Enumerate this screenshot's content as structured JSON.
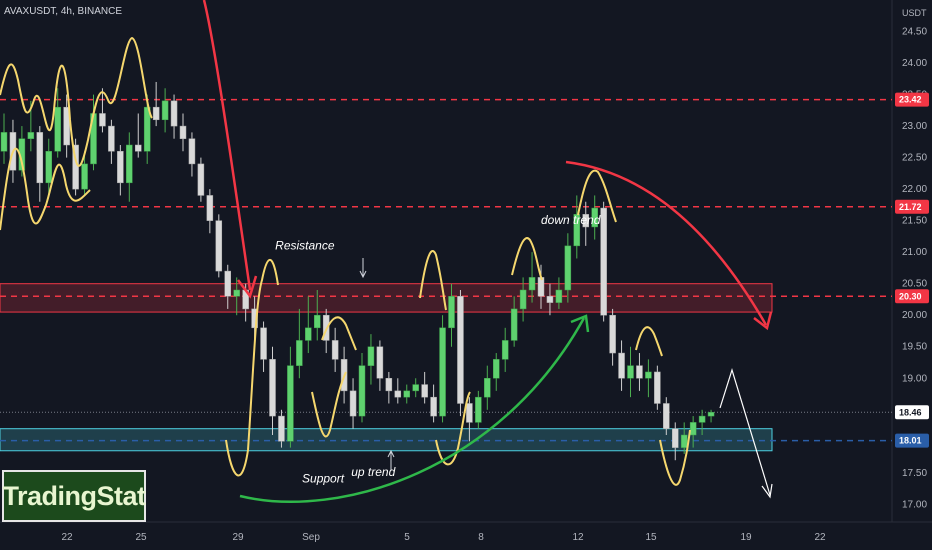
{
  "header": {
    "symbol_line": "AVAXUSDT, 4h, BINANCE",
    "unit": "USDT"
  },
  "logo": {
    "text": "TradingStat"
  },
  "chart_data": {
    "type": "candlestick",
    "title": "AVAXUSDT, 4h, BINANCE",
    "ylabel": "USDT",
    "ylim": [
      16.72,
      25.0
    ],
    "y_ticks": [
      "24.50",
      "24.00",
      "23.50",
      "23.00",
      "22.50",
      "22.00",
      "21.50",
      "21.00",
      "20.50",
      "20.00",
      "19.50",
      "19.00",
      "18.50",
      "18.00",
      "17.50",
      "17.00"
    ],
    "x_ticks": [
      "22",
      "25",
      "29",
      "Sep",
      "5",
      "8",
      "12",
      "15",
      "19",
      "22"
    ],
    "price_levels": [
      {
        "value": 23.42,
        "label": "23.42",
        "color": "#f23645"
      },
      {
        "value": 21.72,
        "label": "21.72",
        "color": "#f23645"
      },
      {
        "value": 20.3,
        "label": "20.30",
        "color": "#f23645"
      },
      {
        "value": 18.01,
        "label": "18.01",
        "color": "#2a5ea8"
      }
    ],
    "current_price": {
      "value": 18.46,
      "label": "18.46"
    },
    "zones": [
      {
        "name": "resistance",
        "from": 20.05,
        "to": 20.5,
        "color": "#f23645"
      },
      {
        "name": "support",
        "from": 17.85,
        "to": 18.2,
        "color": "#4dd0e1"
      }
    ],
    "annotations": [
      {
        "text": "Resistance",
        "x": 30.3,
        "y": 21.04
      },
      {
        "text": "Support",
        "x": 33.3,
        "y": 17.35
      },
      {
        "text": "up trend",
        "x": 38.8,
        "y": 17.45
      },
      {
        "text": "down trend",
        "x": 60.0,
        "y": 21.45
      }
    ],
    "candles": [
      [
        0,
        22.6,
        23.2,
        22.4,
        22.9
      ],
      [
        1,
        22.9,
        23.1,
        22.1,
        22.3
      ],
      [
        2,
        22.3,
        23.0,
        22.2,
        22.8
      ],
      [
        3,
        22.8,
        23.4,
        22.6,
        22.9
      ],
      [
        4,
        22.9,
        23.0,
        21.8,
        22.1
      ],
      [
        5,
        22.1,
        22.8,
        21.9,
        22.6
      ],
      [
        6,
        22.6,
        23.6,
        22.5,
        23.3
      ],
      [
        7,
        23.3,
        23.5,
        22.5,
        22.7
      ],
      [
        8,
        22.7,
        22.8,
        21.9,
        22.0
      ],
      [
        9,
        22.0,
        22.6,
        21.9,
        22.4
      ],
      [
        10,
        22.4,
        23.5,
        22.3,
        23.2
      ],
      [
        11,
        23.2,
        23.6,
        22.9,
        23.0
      ],
      [
        12,
        23.0,
        23.1,
        22.4,
        22.6
      ],
      [
        13,
        22.6,
        22.7,
        21.9,
        22.1
      ],
      [
        14,
        22.1,
        22.9,
        21.8,
        22.7
      ],
      [
        15,
        22.7,
        23.2,
        22.5,
        22.6
      ],
      [
        16,
        22.6,
        23.5,
        22.4,
        23.3
      ],
      [
        17,
        23.3,
        23.7,
        23.0,
        23.1
      ],
      [
        18,
        23.1,
        23.6,
        22.9,
        23.4
      ],
      [
        19,
        23.4,
        23.5,
        22.8,
        23.0
      ],
      [
        20,
        23.0,
        23.2,
        22.6,
        22.8
      ],
      [
        21,
        22.8,
        22.9,
        22.2,
        22.4
      ],
      [
        22,
        22.4,
        22.5,
        21.8,
        21.9
      ],
      [
        23,
        21.9,
        22.0,
        21.3,
        21.5
      ],
      [
        24,
        21.5,
        21.6,
        20.6,
        20.7
      ],
      [
        25,
        20.7,
        20.8,
        20.1,
        20.3
      ],
      [
        26,
        20.3,
        20.6,
        20.0,
        20.4
      ],
      [
        27,
        20.4,
        20.5,
        19.9,
        20.1
      ],
      [
        28,
        20.1,
        20.3,
        19.5,
        19.8
      ],
      [
        29,
        19.8,
        19.9,
        19.1,
        19.3
      ],
      [
        30,
        19.3,
        19.5,
        18.1,
        18.4
      ],
      [
        31,
        18.4,
        18.5,
        17.9,
        18.0
      ],
      [
        32,
        18.0,
        19.5,
        17.9,
        19.2
      ],
      [
        33,
        19.2,
        20.1,
        19.0,
        19.6
      ],
      [
        34,
        19.6,
        20.3,
        19.4,
        19.8
      ],
      [
        35,
        19.8,
        20.4,
        19.6,
        20.0
      ],
      [
        36,
        20.0,
        20.1,
        19.4,
        19.6
      ],
      [
        37,
        19.6,
        19.8,
        19.1,
        19.3
      ],
      [
        38,
        19.3,
        19.5,
        18.6,
        18.8
      ],
      [
        39,
        18.8,
        19.0,
        18.2,
        18.4
      ],
      [
        40,
        18.4,
        19.4,
        18.3,
        19.2
      ],
      [
        41,
        19.2,
        19.7,
        18.9,
        19.5
      ],
      [
        42,
        19.5,
        19.6,
        18.8,
        19.0
      ],
      [
        43,
        19.0,
        19.1,
        18.6,
        18.8
      ],
      [
        44,
        18.8,
        19.0,
        18.6,
        18.7
      ],
      [
        45,
        18.7,
        18.9,
        18.6,
        18.8
      ],
      [
        46,
        18.8,
        19.0,
        18.7,
        18.9
      ],
      [
        47,
        18.9,
        19.1,
        18.6,
        18.7
      ],
      [
        48,
        18.7,
        18.9,
        18.3,
        18.4
      ],
      [
        49,
        18.4,
        20.0,
        18.3,
        19.8
      ],
      [
        50,
        19.8,
        20.5,
        19.5,
        20.3
      ],
      [
        51,
        20.3,
        20.4,
        18.4,
        18.6
      ],
      [
        52,
        18.6,
        18.7,
        18.0,
        18.3
      ],
      [
        53,
        18.3,
        18.8,
        18.2,
        18.7
      ],
      [
        54,
        18.7,
        19.2,
        18.5,
        19.0
      ],
      [
        55,
        19.0,
        19.4,
        18.8,
        19.3
      ],
      [
        56,
        19.3,
        19.8,
        19.1,
        19.6
      ],
      [
        57,
        19.6,
        20.3,
        19.5,
        20.1
      ],
      [
        58,
        20.1,
        20.6,
        19.9,
        20.4
      ],
      [
        59,
        20.4,
        21.0,
        20.2,
        20.6
      ],
      [
        60,
        20.6,
        20.8,
        20.1,
        20.3
      ],
      [
        61,
        20.3,
        20.5,
        20.0,
        20.2
      ],
      [
        62,
        20.2,
        20.6,
        20.1,
        20.4
      ],
      [
        63,
        20.4,
        21.3,
        20.2,
        21.1
      ],
      [
        64,
        21.1,
        21.9,
        20.9,
        21.6
      ],
      [
        65,
        21.6,
        21.8,
        21.1,
        21.4
      ],
      [
        66,
        21.4,
        21.9,
        21.2,
        21.7
      ],
      [
        67,
        21.7,
        21.8,
        19.9,
        20.0
      ],
      [
        68,
        20.0,
        20.1,
        19.2,
        19.4
      ],
      [
        69,
        19.4,
        19.6,
        18.8,
        19.0
      ],
      [
        70,
        19.0,
        19.5,
        18.7,
        19.2
      ],
      [
        71,
        19.2,
        19.4,
        18.8,
        19.0
      ],
      [
        72,
        19.0,
        19.3,
        18.7,
        19.1
      ],
      [
        73,
        19.1,
        19.2,
        18.5,
        18.6
      ],
      [
        74,
        18.6,
        18.7,
        18.1,
        18.2
      ],
      [
        75,
        18.2,
        18.3,
        17.7,
        17.9
      ],
      [
        76,
        17.9,
        18.3,
        17.8,
        18.1
      ],
      [
        77,
        18.1,
        18.4,
        17.9,
        18.3
      ],
      [
        78,
        18.3,
        18.5,
        18.1,
        18.4
      ],
      [
        79,
        18.4,
        18.5,
        18.3,
        18.46
      ]
    ]
  }
}
